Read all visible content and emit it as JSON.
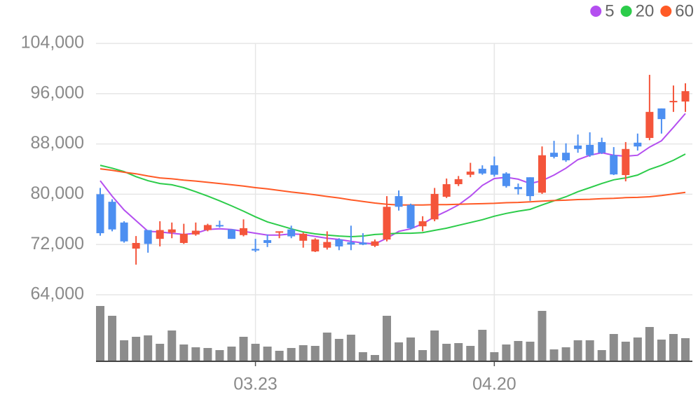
{
  "chart_data": {
    "type": "candlestick",
    "categories": [
      null,
      null,
      null,
      null,
      null,
      null,
      null,
      null,
      null,
      null,
      null,
      null,
      null,
      "03.23",
      null,
      null,
      null,
      null,
      null,
      null,
      null,
      null,
      null,
      null,
      null,
      null,
      null,
      null,
      null,
      null,
      null,
      null,
      null,
      "04.20",
      null,
      null,
      null,
      null,
      null,
      null,
      null,
      null,
      null,
      null,
      null,
      null,
      null,
      null,
      null,
      null
    ],
    "open": [
      80000,
      78800,
      75500,
      71350,
      74300,
      72900,
      73900,
      72250,
      73600,
      74300,
      75100,
      74400,
      73500,
      71300,
      72700,
      73900,
      74400,
      72600,
      70900,
      71500,
      72800,
      72350,
      72300,
      71800,
      72800,
      79700,
      78300,
      74900,
      76000,
      79600,
      81600,
      83100,
      84050,
      84600,
      83300,
      81150,
      82700,
      80250,
      86600,
      86600,
      87750,
      87850,
      88300,
      86200,
      83050,
      88200,
      88950,
      93650,
      94650,
      94750
    ],
    "high": [
      81000,
      79200,
      75700,
      73350,
      74300,
      75700,
      75500,
      75300,
      75500,
      75300,
      75800,
      74400,
      76000,
      72900,
      73600,
      74100,
      75000,
      73900,
      73000,
      74100,
      73000,
      75000,
      73800,
      72800,
      79700,
      80600,
      78500,
      76500,
      81000,
      82500,
      82900,
      85000,
      84600,
      86000,
      83500,
      81700,
      82700,
      87600,
      88500,
      88100,
      89500,
      89850,
      89000,
      87500,
      88300,
      89650,
      99000,
      93650,
      97300,
      97650
    ],
    "low": [
      73400,
      74100,
      72300,
      68800,
      70700,
      71700,
      73000,
      72100,
      73400,
      74100,
      74700,
      72900,
      73300,
      70800,
      71600,
      73000,
      73000,
      71500,
      70800,
      71200,
      71100,
      71100,
      71900,
      71600,
      72500,
      77400,
      74400,
      74100,
      75700,
      79400,
      81300,
      82700,
      83100,
      82800,
      81050,
      79950,
      78950,
      80050,
      85700,
      85150,
      86600,
      85950,
      86400,
      83050,
      82050,
      86950,
      88600,
      89650,
      93100,
      93100
    ],
    "close": [
      73800,
      74400,
      72500,
      72250,
      72100,
      74300,
      74400,
      73700,
      74200,
      75100,
      74900,
      72900,
      74600,
      71050,
      72250,
      74100,
      73300,
      73700,
      72800,
      72400,
      71700,
      72000,
      72000,
      72500,
      78000,
      78000,
      74600,
      75700,
      80050,
      81600,
      82400,
      83600,
      83300,
      83100,
      81300,
      80800,
      79700,
      86200,
      85950,
      85400,
      87200,
      86200,
      86600,
      83150,
      87200,
      87600,
      93100,
      91950,
      94850,
      96400
    ],
    "up_color": "#f4553b",
    "down_color": "#4d8ff1",
    "series": [
      {
        "name": "5",
        "color": "#b44ff0",
        "values": [
          82150,
          79700,
          77500,
          75800,
          74100,
          74000,
          73800,
          73600,
          73800,
          74400,
          74500,
          74400,
          74100,
          73800,
          73500,
          73500,
          73700,
          73600,
          73300,
          73000,
          72800,
          72500,
          72250,
          72100,
          73000,
          74100,
          74500,
          75300,
          76400,
          77300,
          78300,
          79700,
          81400,
          82500,
          82700,
          82400,
          81700,
          82150,
          83050,
          84150,
          85500,
          86200,
          86600,
          86200,
          86050,
          86200,
          87500,
          88500,
          90650,
          92850
        ]
      },
      {
        "name": "20",
        "color": "#2ccc4a",
        "values": [
          84600,
          84150,
          83600,
          82800,
          82150,
          81700,
          81500,
          81050,
          80400,
          79700,
          78950,
          78150,
          77300,
          76400,
          75600,
          75050,
          74500,
          74000,
          73700,
          73500,
          73350,
          73250,
          73350,
          73600,
          73700,
          73800,
          73800,
          73900,
          74250,
          74600,
          75050,
          75500,
          75950,
          76500,
          76950,
          77300,
          77600,
          78300,
          78950,
          79600,
          80400,
          81050,
          81700,
          82300,
          82600,
          83050,
          83950,
          84600,
          85400,
          86400
        ]
      },
      {
        "name": "60",
        "color": "#ff5a26",
        "values": [
          84050,
          83800,
          83500,
          83250,
          82900,
          82600,
          82450,
          82250,
          82100,
          81900,
          81700,
          81500,
          81300,
          81050,
          80850,
          80600,
          80350,
          80150,
          79900,
          79650,
          79400,
          79100,
          78850,
          78600,
          78400,
          78300,
          78300,
          78300,
          78350,
          78350,
          78400,
          78450,
          78500,
          78550,
          78650,
          78700,
          78800,
          78900,
          79000,
          79050,
          79150,
          79200,
          79300,
          79350,
          79450,
          79500,
          79600,
          79800,
          80050,
          80300
        ]
      }
    ],
    "volume": {
      "color": "#8c8c8c",
      "ylim": [
        0,
        80
      ],
      "values": [
        79,
        65,
        30,
        35,
        37,
        25,
        44,
        24,
        20,
        19,
        16,
        21,
        35,
        25,
        21,
        15,
        19,
        23,
        22,
        41,
        32,
        38,
        13,
        9,
        65,
        27,
        34,
        16,
        44,
        25,
        26,
        22,
        45,
        13,
        24,
        29,
        28,
        72,
        17,
        20,
        30,
        30,
        16,
        39,
        28,
        34,
        49,
        31,
        39,
        33
      ]
    },
    "ylim": [
      62000,
      106000
    ],
    "yticks": [
      {
        "value": 64000,
        "label": "64,000"
      },
      {
        "value": 72000,
        "label": "72,000"
      },
      {
        "value": 80000,
        "label": "80,000"
      },
      {
        "value": 88000,
        "label": "88,000"
      },
      {
        "value": 96000,
        "label": "96,000"
      },
      {
        "value": 104000,
        "label": "104,000"
      }
    ],
    "grid": true,
    "legend": "top-right"
  }
}
